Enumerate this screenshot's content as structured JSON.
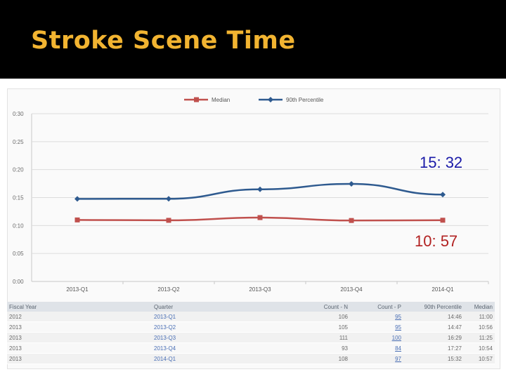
{
  "slide": {
    "title": "Stroke Scene Time"
  },
  "callouts": {
    "p90": "15: 32",
    "median": "10: 57"
  },
  "colors": {
    "median": "#c0504d",
    "p90": "#2e5a8f",
    "title": "#f2b431",
    "callout_p90": "#1a1aa8",
    "callout_median": "#b22222"
  },
  "chart_data": {
    "type": "line",
    "categories": [
      "2013-Q1",
      "2013-Q2",
      "2013-Q3",
      "2013-Q4",
      "2014-Q1"
    ],
    "series": [
      {
        "name": "Median",
        "values": [
          11.0,
          10.93,
          11.42,
          10.9,
          10.95
        ]
      },
      {
        "name": "90th Percentile",
        "values": [
          14.77,
          14.78,
          16.48,
          17.45,
          15.53
        ]
      }
    ],
    "y_ticks": [
      "0:00",
      "0:05",
      "0:10",
      "0:15",
      "0:20",
      "0:25",
      "0:30"
    ],
    "ylim": [
      0,
      30
    ],
    "grid": true,
    "legend": "top-center"
  },
  "table": {
    "headers": [
      "Fiscal Year",
      "Quarter",
      "Count - N",
      "Count - P",
      "90th Percentile",
      "Median"
    ],
    "rows": [
      [
        "2012",
        "2013-Q1",
        "106",
        "95",
        "14:46",
        "11:00"
      ],
      [
        "2013",
        "2013-Q2",
        "105",
        "95",
        "14:47",
        "10:56"
      ],
      [
        "2013",
        "2013-Q3",
        "111",
        "100",
        "16:29",
        "11:25"
      ],
      [
        "2013",
        "2013-Q4",
        "93",
        "84",
        "17:27",
        "10:54"
      ],
      [
        "2013",
        "2014-Q1",
        "108",
        "97",
        "15:32",
        "10:57"
      ]
    ]
  }
}
